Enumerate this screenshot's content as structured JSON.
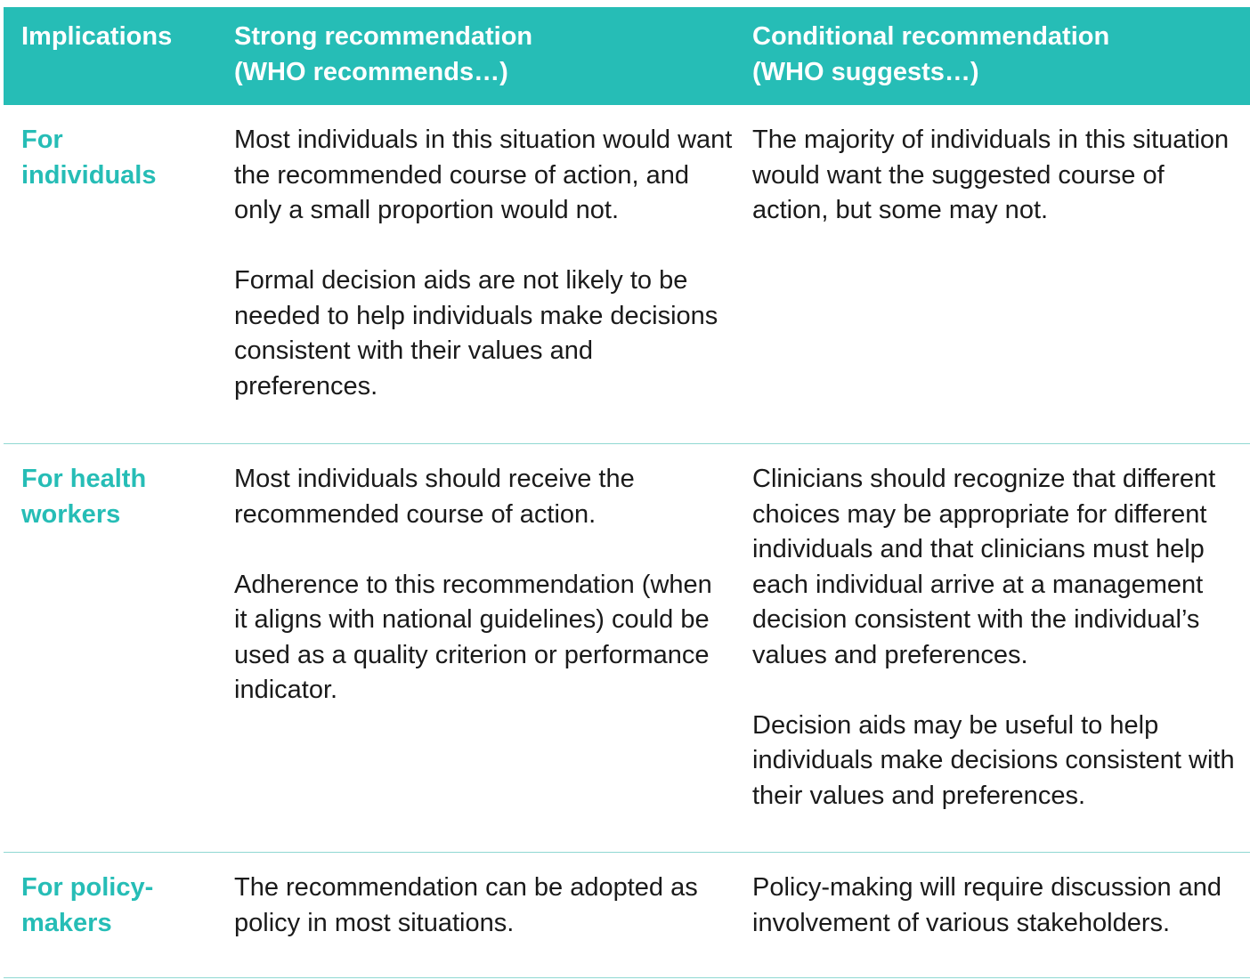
{
  "header": {
    "col1": "Implications",
    "col2_line1": "Strong recommendation",
    "col2_line2": "(WHO recommends…)",
    "col3_line1": "Conditional recommendation",
    "col3_line2": "(WHO suggests…)"
  },
  "rows": [
    {
      "label": "For individuals",
      "strong": [
        "Most individuals in this situation would want the recommended course of action, and only a small proportion would not.",
        "Formal decision aids are not likely to be needed to help individuals make decisions consistent with their values and preferences."
      ],
      "conditional": [
        "The majority of individuals in this situation would want the suggested course of action, but some may not."
      ]
    },
    {
      "label": "For health workers",
      "strong": [
        "Most individuals should receive the recommended course of action.",
        "Adherence to this recommendation (when it aligns with national guidelines) could be used as a quality criterion or performance indicator."
      ],
      "conditional": [
        "Clinicians should recognize that different choices may be appropriate for different individuals and that clinicians must help each individual arrive at a management decision consistent with the individual’s values and preferences.",
        "Decision aids may be useful to help individuals make decisions consistent with their values and preferences."
      ]
    },
    {
      "label": "For policy-makers",
      "strong": [
        "The recommendation can be adopted as policy in most situations."
      ],
      "conditional": [
        "Policy-making will require discussion and involvement of various stakeholders."
      ]
    }
  ]
}
